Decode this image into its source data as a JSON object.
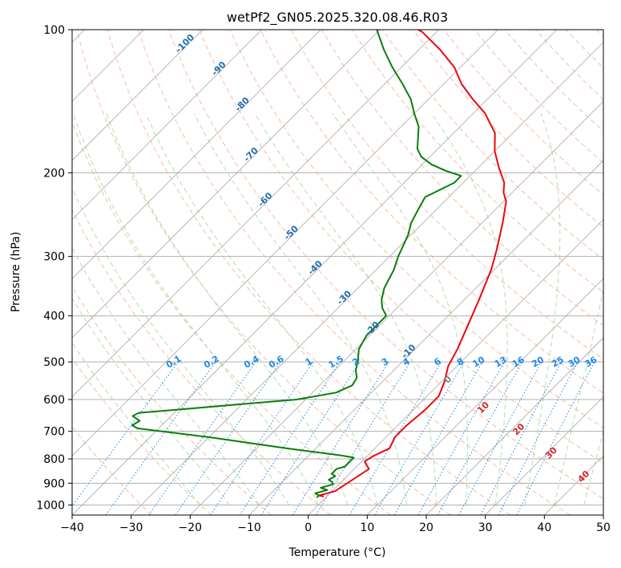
{
  "chart_data": {
    "type": "line",
    "subtype": "skew-T log-P",
    "title": "wetPf2_GN05.2025.320.08.46.R03",
    "xlabel": "Temperature (°C)",
    "ylabel": "Pressure (hPa)",
    "xlim": [
      -40,
      50
    ],
    "ylim": [
      1050,
      100
    ],
    "y_scale": "log",
    "grid": true,
    "x_ticks": [
      -40,
      -30,
      -20,
      -10,
      0,
      10,
      20,
      30,
      40,
      50
    ],
    "x_tick_labels": [
      "−40",
      "−30",
      "−20",
      "−10",
      "0",
      "10",
      "20",
      "30",
      "40",
      "50"
    ],
    "y_ticks": [
      1000,
      900,
      800,
      700,
      600,
      500,
      400,
      300,
      200,
      100
    ],
    "y_tick_labels": [
      "1000",
      "900",
      "800",
      "700",
      "600",
      "500",
      "400",
      "300",
      "200",
      "100"
    ],
    "colors": {
      "temperature": "#e8090f",
      "dewpoint": "#0b7d0b",
      "isotherm_labels": "#1f6fb0",
      "mixing_ratio": "#1e88e5",
      "dry_adiabat": "#f4a582",
      "moist_adiabat": "#8fcf8f",
      "moist_label": "#d62728"
    },
    "series": [
      {
        "points": [
          [
            -0.5,
            960
          ],
          [
            -1.5,
            955
          ],
          [
            0.5,
            935
          ],
          [
            2.5,
            840
          ],
          [
            0.5,
            810
          ],
          [
            1.0,
            790
          ],
          [
            2.5,
            760
          ],
          [
            1.5,
            720
          ],
          [
            1.5,
            680
          ],
          [
            2.0,
            630
          ],
          [
            2.0,
            590
          ],
          [
            0.5,
            550
          ],
          [
            -1.5,
            510
          ],
          [
            -2.8,
            470
          ],
          [
            -5.0,
            420
          ],
          [
            -7.5,
            370
          ],
          [
            -10.5,
            320
          ],
          [
            -13.0,
            290
          ],
          [
            -16.5,
            255
          ],
          [
            -19.5,
            230
          ],
          [
            -21.5,
            220
          ],
          [
            -23.0,
            210
          ],
          [
            -26.5,
            195
          ],
          [
            -30.0,
            180
          ],
          [
            -33.0,
            165
          ],
          [
            -38.0,
            150
          ],
          [
            -42.5,
            140
          ],
          [
            -47.0,
            130
          ],
          [
            -51.0,
            120
          ],
          [
            -56.5,
            110
          ],
          [
            -62.5,
            101
          ],
          [
            -63.5,
            100
          ]
        ]
      },
      {
        "points": [
          [
            -1.5,
            965
          ],
          [
            -1.5,
            955
          ],
          [
            -2.5,
            945
          ],
          [
            -1.0,
            930
          ],
          [
            -2.5,
            920
          ],
          [
            -1.0,
            905
          ],
          [
            -1.5,
            895
          ],
          [
            -2.5,
            885
          ],
          [
            -2.0,
            870
          ],
          [
            -3.0,
            860
          ],
          [
            -3.0,
            840
          ],
          [
            -2.0,
            830
          ],
          [
            -2.0,
            810
          ],
          [
            -2.0,
            795
          ],
          [
            -5.0,
            785
          ],
          [
            -15.0,
            760
          ],
          [
            -30.0,
            720
          ],
          [
            -43.5,
            690
          ],
          [
            -45.0,
            680
          ],
          [
            -44.5,
            665
          ],
          [
            -46.5,
            650
          ],
          [
            -46.0,
            640
          ],
          [
            -40.0,
            630
          ],
          [
            -31.0,
            615
          ],
          [
            -21.5,
            600
          ],
          [
            -16.0,
            580
          ],
          [
            -14.5,
            560
          ],
          [
            -15.0,
            540
          ],
          [
            -16.5,
            520
          ],
          [
            -17.5,
            500
          ],
          [
            -19.5,
            470
          ],
          [
            -20.5,
            440
          ],
          [
            -20.5,
            425
          ],
          [
            -20.5,
            400
          ],
          [
            -22.5,
            385
          ],
          [
            -24.0,
            370
          ],
          [
            -25.5,
            350
          ],
          [
            -27.0,
            320
          ],
          [
            -28.5,
            300
          ],
          [
            -30.5,
            270
          ],
          [
            -32.0,
            255
          ],
          [
            -33.0,
            240
          ],
          [
            -34.0,
            225
          ],
          [
            -31.5,
            210
          ],
          [
            -31.5,
            203
          ],
          [
            -35.0,
            198
          ],
          [
            -38.5,
            192
          ],
          [
            -41.5,
            185
          ],
          [
            -43.5,
            178
          ],
          [
            -45.0,
            170
          ],
          [
            -47.0,
            160
          ],
          [
            -50.0,
            150
          ],
          [
            -53.0,
            140
          ],
          [
            -57.0,
            130
          ],
          [
            -61.5,
            120
          ],
          [
            -66.0,
            110
          ],
          [
            -70.5,
            100
          ]
        ]
      }
    ],
    "isotherm_labels": [
      "-100",
      "-90",
      "-80",
      "-70",
      "-60",
      "-50",
      "-40",
      "-30",
      "-20",
      "-10"
    ],
    "mixing_ratio_labels": [
      "0.1",
      "0.2",
      "0.4",
      "0.6",
      "1",
      "1.5",
      "2",
      "3",
      "4",
      "6",
      "8",
      "10",
      "13",
      "16",
      "20",
      "25",
      "30",
      "36"
    ],
    "moist_adiabat_labels": [
      "0",
      "10",
      "20",
      "30",
      "40"
    ]
  }
}
